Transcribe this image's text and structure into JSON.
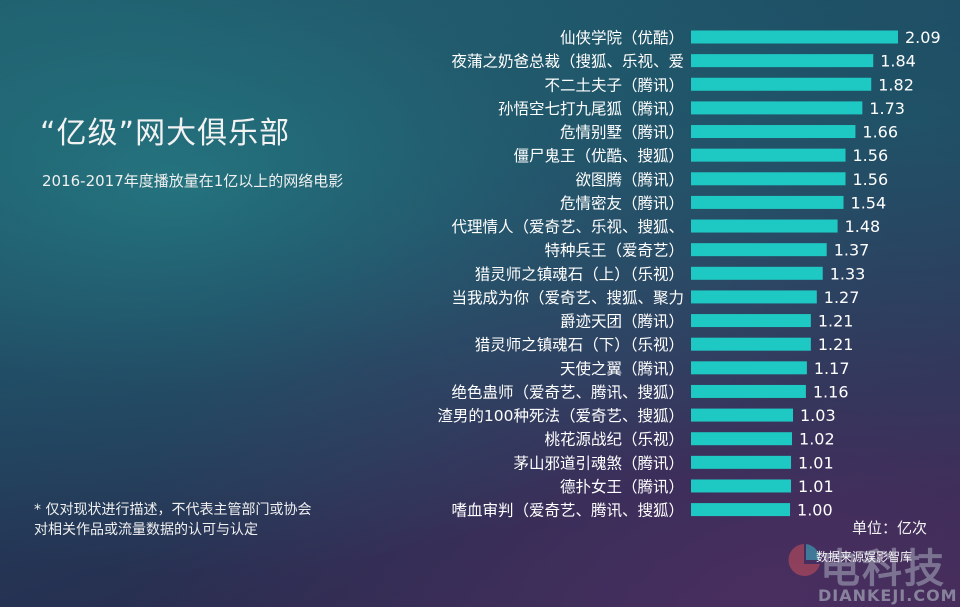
{
  "header": {
    "title": "“亿级”网大俱乐部",
    "subtitle": "2016-2017年度播放量在1亿以上的网络电影"
  },
  "note": {
    "line1": "* 仅对现状进行描述，不代表主管部门或协会",
    "line2": "对相关作品或流量数据的认可与认定"
  },
  "unit_label": "单位：亿次",
  "source_label": "数据来源娱影智库",
  "watermark": {
    "text_cn": "电科技",
    "text_en": "DIANKEJI.COM"
  },
  "colors": {
    "bar": "#1fc9c3",
    "text": "#ffffff"
  },
  "chart_data": {
    "type": "bar",
    "orientation": "horizontal",
    "title": "“亿级”网大俱乐部",
    "subtitle": "2016-2017年度播放量在1亿以上的网络电影",
    "unit": "单位：亿次",
    "xlim": [
      0,
      2.09
    ],
    "grid": false,
    "categories": [
      "仙侠学院（优酷）",
      "夜蒲之奶爸总裁（搜狐、乐视、爱",
      "不二土夫子（腾讯）",
      "孙悟空七打九尾狐（腾讯）",
      "危情别墅（腾讯）",
      "僵尸鬼王（优酷、搜狐）",
      "欲图腾（腾讯）",
      "危情密友（腾讯）",
      "代理情人（爱奇艺、乐视、搜狐、",
      "特种兵王（爱奇艺）",
      "猎灵师之镇魂石（上）（乐视）",
      "当我成为你（爱奇艺、搜狐、聚力",
      "爵迹天团（腾讯）",
      "猎灵师之镇魂石（下）（乐视）",
      "天使之翼（腾讯）",
      "绝色蛊师（爱奇艺、腾讯、搜狐）",
      "渣男的100种死法（爱奇艺、搜狐）",
      "桃花源战纪（乐视）",
      "茅山邪道引魂煞（腾讯）",
      "德扑女王（腾讯）",
      "嗜血审判（爱奇艺、腾讯、搜狐）"
    ],
    "values": [
      2.09,
      1.84,
      1.82,
      1.73,
      1.66,
      1.56,
      1.56,
      1.54,
      1.48,
      1.37,
      1.33,
      1.27,
      1.21,
      1.21,
      1.17,
      1.16,
      1.03,
      1.02,
      1.01,
      1.01,
      1.0
    ],
    "value_labels": [
      "2.09",
      "1.84",
      "1.82",
      "1.73",
      "1.66",
      "1.56",
      "1.56",
      "1.54",
      "1.48",
      "1.37",
      "1.33",
      "1.27",
      "1.21",
      "1.21",
      "1.17",
      "1.16",
      "1.03",
      "1.02",
      "1.01",
      "1.01",
      "1.00"
    ]
  }
}
